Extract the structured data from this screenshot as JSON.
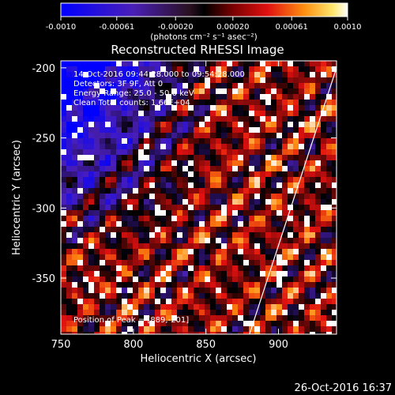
{
  "colorbar": {
    "tick_labels": [
      "-0.0010",
      "-0.00061",
      "-0.00020",
      "0.00020",
      "0.00061",
      "0.0010"
    ],
    "tick_values": [
      -0.001,
      -0.00061,
      -0.0002,
      0.0002,
      0.00061,
      0.001
    ],
    "range": [
      -0.001,
      0.001
    ],
    "units_label": "(photons cm⁻² s⁻¹ asec⁻²)",
    "colors": [
      "#0000ff",
      "#4a1fb8",
      "#000000",
      "#e01010",
      "#ff9010",
      "#ffffff"
    ]
  },
  "chart_data": {
    "type": "heatmap",
    "title": "Reconstructed RHESSI Image",
    "xlabel": "Heliocentric X (arcsec)",
    "ylabel": "Heliocentric Y (arcsec)",
    "xlim": [
      750,
      940
    ],
    "ylim": [
      -390,
      -195
    ],
    "x_ticks": [
      750,
      800,
      850,
      900
    ],
    "y_ticks": [
      -200,
      -250,
      -300,
      -350
    ],
    "x_tick_labels": [
      "750",
      "800",
      "850",
      "900"
    ],
    "y_tick_labels": [
      "-200",
      "-250",
      "-300",
      "-350"
    ],
    "limb_line": {
      "x": [
        880,
        940
      ],
      "y": [
        -390,
        -200
      ]
    },
    "peak_position": [
      889,
      -201
    ],
    "annotations": [
      "14-Oct-2016 09:44:28.000 to 09:54:28.000",
      "Detectors: 3F 9F, Att 0",
      "Energy Range: 25.0 - 50.0 keV",
      "Clean    Total counts: 1.66E+04",
      "Position of Peak = [889,-201]"
    ]
  },
  "footer": {
    "timestamp": "26-Oct-2016 16:37"
  }
}
